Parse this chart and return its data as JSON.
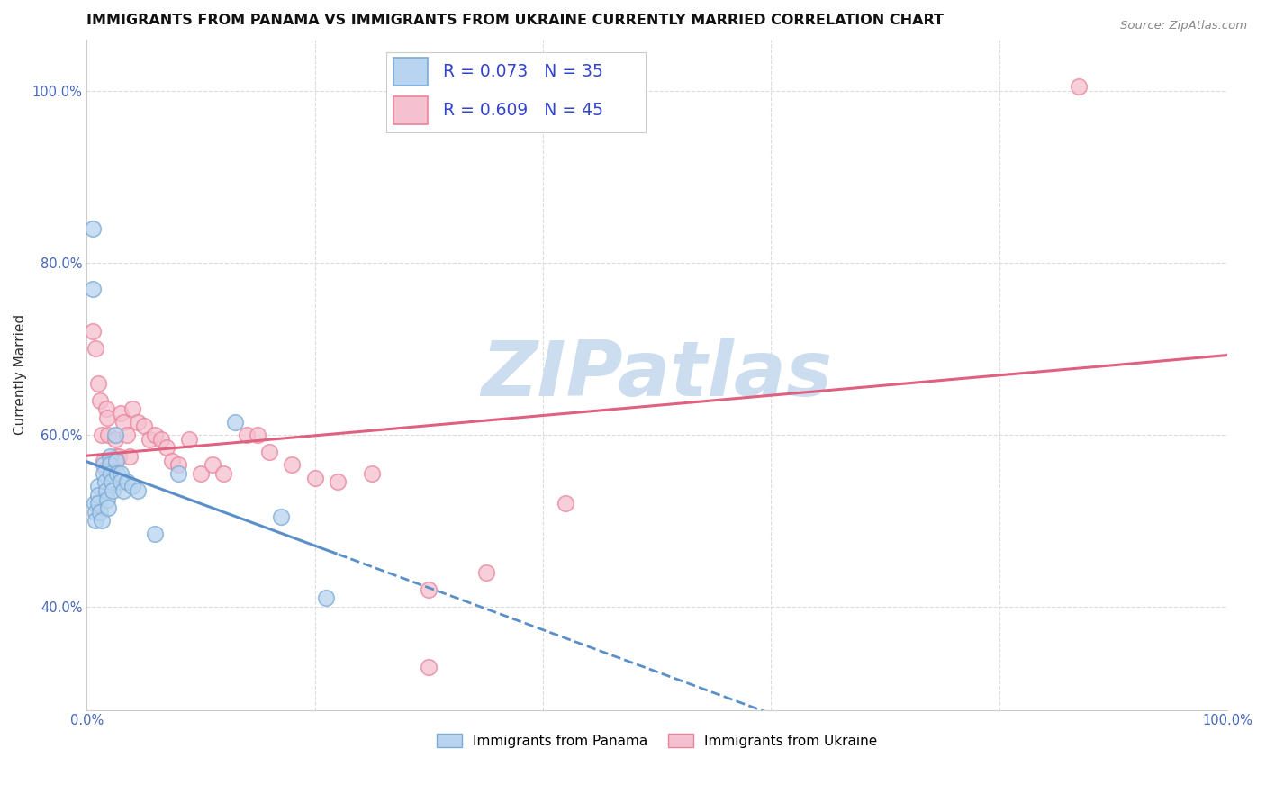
{
  "title": "IMMIGRANTS FROM PANAMA VS IMMIGRANTS FROM UKRAINE CURRENTLY MARRIED CORRELATION CHART",
  "source": "Source: ZipAtlas.com",
  "ylabel": "Currently Married",
  "xlabel": "",
  "xlim": [
    0.0,
    1.0
  ],
  "ylim": [
    0.28,
    1.06
  ],
  "xtick_labels": [
    "0.0%",
    "",
    "",
    "",
    "",
    "100.0%"
  ],
  "xtick_vals": [
    0.0,
    0.2,
    0.4,
    0.6,
    0.8,
    1.0
  ],
  "ytick_labels": [
    "40.0%",
    "60.0%",
    "80.0%",
    "100.0%"
  ],
  "ytick_vals": [
    0.4,
    0.6,
    0.8,
    1.0
  ],
  "background_color": "#ffffff",
  "grid_color": "#d8d8d8",
  "panama_color_fill": "#b8d4f0",
  "panama_color_edge": "#7baad4",
  "ukraine_color_fill": "#f5c0d0",
  "ukraine_color_edge": "#e8849a",
  "panama_line_color": "#5b8fc9",
  "ukraine_line_color": "#e06080",
  "panama_x": [
    0.005,
    0.005,
    0.007,
    0.008,
    0.008,
    0.01,
    0.01,
    0.01,
    0.012,
    0.013,
    0.015,
    0.015,
    0.016,
    0.017,
    0.018,
    0.019,
    0.02,
    0.02,
    0.021,
    0.022,
    0.023,
    0.025,
    0.026,
    0.027,
    0.03,
    0.03,
    0.032,
    0.035,
    0.04,
    0.045,
    0.06,
    0.08,
    0.13,
    0.17,
    0.21
  ],
  "panama_y": [
    0.84,
    0.77,
    0.52,
    0.51,
    0.5,
    0.54,
    0.53,
    0.52,
    0.51,
    0.5,
    0.565,
    0.555,
    0.545,
    0.535,
    0.525,
    0.515,
    0.575,
    0.565,
    0.555,
    0.545,
    0.535,
    0.6,
    0.57,
    0.555,
    0.555,
    0.545,
    0.535,
    0.545,
    0.54,
    0.535,
    0.485,
    0.555,
    0.615,
    0.505,
    0.41
  ],
  "ukraine_x": [
    0.005,
    0.008,
    0.01,
    0.012,
    0.013,
    0.015,
    0.016,
    0.017,
    0.018,
    0.019,
    0.02,
    0.022,
    0.023,
    0.025,
    0.026,
    0.028,
    0.03,
    0.032,
    0.035,
    0.038,
    0.04,
    0.045,
    0.05,
    0.055,
    0.06,
    0.065,
    0.07,
    0.075,
    0.08,
    0.09,
    0.1,
    0.11,
    0.12,
    0.14,
    0.15,
    0.16,
    0.18,
    0.2,
    0.22,
    0.25,
    0.3,
    0.35,
    0.42,
    0.87,
    0.3
  ],
  "ukraine_y": [
    0.72,
    0.7,
    0.66,
    0.64,
    0.6,
    0.57,
    0.56,
    0.63,
    0.62,
    0.6,
    0.565,
    0.555,
    0.555,
    0.595,
    0.575,
    0.575,
    0.625,
    0.615,
    0.6,
    0.575,
    0.63,
    0.615,
    0.61,
    0.595,
    0.6,
    0.595,
    0.585,
    0.57,
    0.565,
    0.595,
    0.555,
    0.565,
    0.555,
    0.6,
    0.6,
    0.58,
    0.565,
    0.55,
    0.545,
    0.555,
    0.42,
    0.44,
    0.52,
    1.005,
    0.33
  ],
  "legend_label_panama": "Immigrants from Panama",
  "legend_label_ukraine": "Immigrants from Ukraine",
  "legend_R_panama": "0.073",
  "legend_N_panama": "35",
  "legend_R_ukraine": "0.609",
  "legend_N_ukraine": "45",
  "watermark_text": "ZIPatlas",
  "watermark_color": "#ccddf0",
  "title_fontsize": 11.5,
  "axis_label_fontsize": 11,
  "tick_fontsize": 10.5,
  "legend_fontsize": 13.5,
  "source_fontsize": 9.5
}
